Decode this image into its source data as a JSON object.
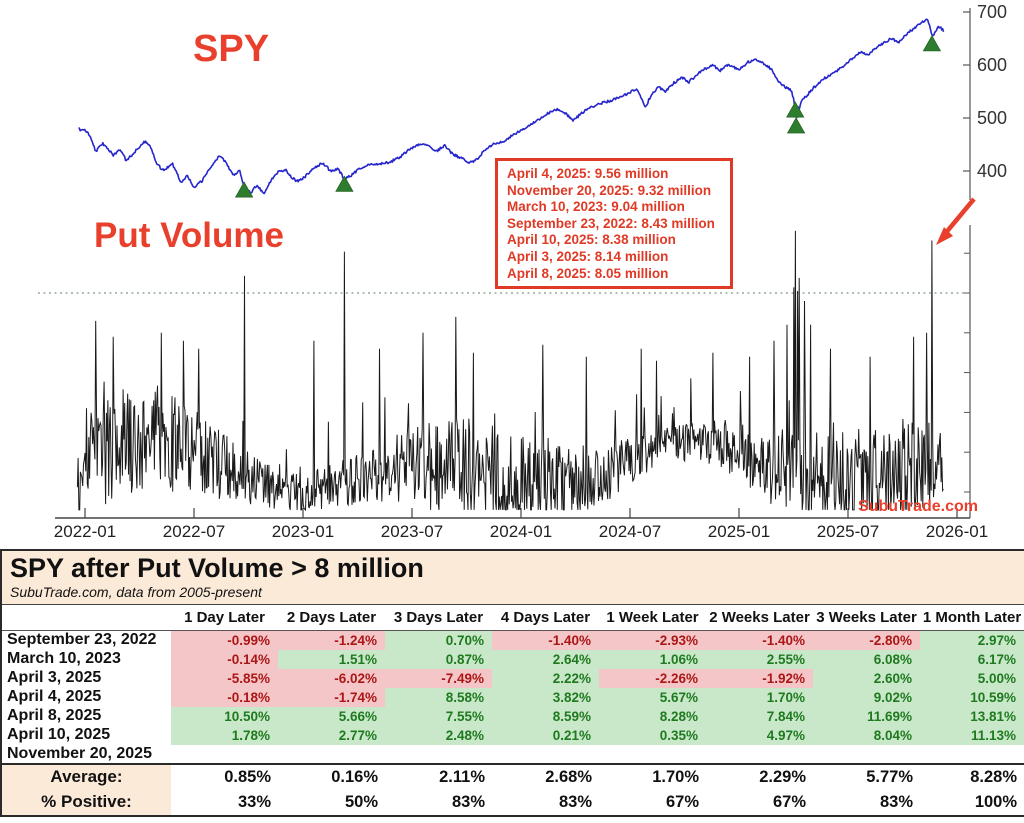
{
  "chart": {
    "spy_label": "SPY",
    "put_volume_label": "Put Volume",
    "credit": "SubuTrade.com",
    "annotation_lines": [
      "April 4, 2025: 9.56 million",
      "November 20, 2025: 9.32 million",
      "March 10, 2023: 9.04 million",
      "September 23, 2022: 8.43 million",
      "April 10, 2025: 8.38 million",
      "April 3, 2025: 8.14 million",
      "April 8, 2025: 8.05 million"
    ],
    "colors": {
      "accent_red": "#e8402c",
      "spy_line": "#2525cd",
      "volume_line": "#1a1a1a",
      "marker_green": "#2e7d2e",
      "threshold_dotted": "#95ab95",
      "axis": "#444444"
    }
  },
  "chart_data": {
    "type": "line",
    "title": "",
    "x_axis": {
      "ticks": [
        {
          "label": "2022-01",
          "t": 2022.0
        },
        {
          "label": "2022-07",
          "t": 2022.5
        },
        {
          "label": "2023-01",
          "t": 2023.0
        },
        {
          "label": "2023-07",
          "t": 2023.5
        },
        {
          "label": "2024-01",
          "t": 2024.0
        },
        {
          "label": "2024-07",
          "t": 2024.5
        },
        {
          "label": "2025-01",
          "t": 2025.0
        },
        {
          "label": "2025-07",
          "t": 2025.5
        },
        {
          "label": "2026-01",
          "t": 2026.0
        }
      ],
      "range": [
        2021.95,
        2026.06
      ]
    },
    "price_axis": {
      "ticks": [
        700,
        600,
        500,
        400
      ],
      "range": [
        350,
        705
      ],
      "side": "right"
    },
    "volume_axis": {
      "unlabeled_tick_values": [
        9,
        8,
        7,
        6,
        5,
        4,
        3
      ],
      "units": "millions"
    },
    "spy_series": {
      "name": "SPY",
      "points": [
        [
          2021.97,
          479
        ],
        [
          2022.0,
          477
        ],
        [
          2022.02,
          468
        ],
        [
          2022.05,
          437
        ],
        [
          2022.08,
          452
        ],
        [
          2022.1,
          446
        ],
        [
          2022.13,
          428
        ],
        [
          2022.16,
          442
        ],
        [
          2022.19,
          419
        ],
        [
          2022.23,
          437
        ],
        [
          2022.27,
          456
        ],
        [
          2022.3,
          448
        ],
        [
          2022.33,
          412
        ],
        [
          2022.36,
          401
        ],
        [
          2022.4,
          415
        ],
        [
          2022.44,
          379
        ],
        [
          2022.47,
          392
        ],
        [
          2022.5,
          367
        ],
        [
          2022.54,
          383
        ],
        [
          2022.57,
          404
        ],
        [
          2022.62,
          430
        ],
        [
          2022.65,
          414
        ],
        [
          2022.68,
          392
        ],
        [
          2022.71,
          402
        ],
        [
          2022.73,
          367
        ],
        [
          2022.76,
          359
        ],
        [
          2022.79,
          374
        ],
        [
          2022.82,
          357
        ],
        [
          2022.85,
          380
        ],
        [
          2022.88,
          397
        ],
        [
          2022.92,
          403
        ],
        [
          2022.94,
          392
        ],
        [
          2022.97,
          380
        ],
        [
          2023.0,
          386
        ],
        [
          2023.05,
          405
        ],
        [
          2023.09,
          415
        ],
        [
          2023.13,
          399
        ],
        [
          2023.16,
          404
        ],
        [
          2023.19,
          385
        ],
        [
          2023.22,
          391
        ],
        [
          2023.26,
          405
        ],
        [
          2023.3,
          412
        ],
        [
          2023.35,
          413
        ],
        [
          2023.4,
          417
        ],
        [
          2023.45,
          428
        ],
        [
          2023.5,
          444
        ],
        [
          2023.55,
          452
        ],
        [
          2023.58,
          448
        ],
        [
          2023.61,
          437
        ],
        [
          2023.65,
          448
        ],
        [
          2023.69,
          430
        ],
        [
          2023.73,
          425
        ],
        [
          2023.76,
          415
        ],
        [
          2023.79,
          419
        ],
        [
          2023.83,
          437
        ],
        [
          2023.88,
          452
        ],
        [
          2023.93,
          458
        ],
        [
          2023.97,
          470
        ],
        [
          2024.0,
          475
        ],
        [
          2024.04,
          488
        ],
        [
          2024.08,
          497
        ],
        [
          2024.12,
          508
        ],
        [
          2024.16,
          517
        ],
        [
          2024.2,
          510
        ],
        [
          2024.24,
          495
        ],
        [
          2024.28,
          510
        ],
        [
          2024.33,
          522
        ],
        [
          2024.37,
          528
        ],
        [
          2024.42,
          534
        ],
        [
          2024.46,
          541
        ],
        [
          2024.5,
          548
        ],
        [
          2024.53,
          556
        ],
        [
          2024.57,
          520
        ],
        [
          2024.6,
          546
        ],
        [
          2024.63,
          558
        ],
        [
          2024.66,
          550
        ],
        [
          2024.7,
          566
        ],
        [
          2024.74,
          576
        ],
        [
          2024.77,
          568
        ],
        [
          2024.81,
          583
        ],
        [
          2024.85,
          594
        ],
        [
          2024.88,
          601
        ],
        [
          2024.91,
          588
        ],
        [
          2024.95,
          600
        ],
        [
          2025.0,
          592
        ],
        [
          2025.04,
          605
        ],
        [
          2025.08,
          611
        ],
        [
          2025.12,
          600
        ],
        [
          2025.15,
          592
        ],
        [
          2025.18,
          568
        ],
        [
          2025.21,
          559
        ],
        [
          2025.24,
          552
        ],
        [
          2025.252,
          535
        ],
        [
          2025.258,
          508
        ],
        [
          2025.265,
          497
        ],
        [
          2025.27,
          522
        ],
        [
          2025.276,
          513
        ],
        [
          2025.285,
          530
        ],
        [
          2025.31,
          542
        ],
        [
          2025.34,
          556
        ],
        [
          2025.38,
          572
        ],
        [
          2025.42,
          582
        ],
        [
          2025.46,
          592
        ],
        [
          2025.5,
          606
        ],
        [
          2025.53,
          616
        ],
        [
          2025.56,
          624
        ],
        [
          2025.59,
          618
        ],
        [
          2025.63,
          633
        ],
        [
          2025.67,
          644
        ],
        [
          2025.7,
          650
        ],
        [
          2025.73,
          642
        ],
        [
          2025.77,
          659
        ],
        [
          2025.81,
          671
        ],
        [
          2025.84,
          681
        ],
        [
          2025.865,
          686
        ],
        [
          2025.878,
          668
        ],
        [
          2025.888,
          654
        ],
        [
          2025.9,
          664
        ],
        [
          2025.92,
          673
        ],
        [
          2025.938,
          665
        ]
      ]
    },
    "event_markers": {
      "shape": "triangle-up",
      "points": [
        {
          "t": 2022.73,
          "price": 379,
          "date": "September 23, 2022"
        },
        {
          "t": 2023.19,
          "price": 390,
          "date": "March 10, 2023"
        },
        {
          "t": 2025.258,
          "price": 530,
          "date": "April 2025 cluster"
        },
        {
          "t": 2025.262,
          "price": 500,
          "date": "April 2025 cluster"
        },
        {
          "t": 2025.885,
          "price": 655,
          "date": "November 20, 2025"
        }
      ]
    },
    "put_volume": {
      "name": "Put Volume (millions of contracts)",
      "threshold_million": 8,
      "spikes": [
        {
          "date": "September 23, 2022",
          "t": 2022.73,
          "value": 8.43
        },
        {
          "date": "March 10, 2023",
          "t": 2023.19,
          "value": 9.04
        },
        {
          "date": "April 3, 2025",
          "t": 2025.253,
          "value": 8.14
        },
        {
          "date": "April 4, 2025",
          "t": 2025.258,
          "value": 9.56
        },
        {
          "date": "April 8, 2025",
          "t": 2025.268,
          "value": 8.05
        },
        {
          "date": "April 10, 2025",
          "t": 2025.275,
          "value": 8.38
        },
        {
          "date": "November 20, 2025",
          "t": 2025.885,
          "value": 9.32
        }
      ],
      "minor_spikes": [
        [
          2022.05,
          7.3
        ],
        [
          2022.13,
          6.9
        ],
        [
          2022.35,
          7.0
        ],
        [
          2022.45,
          6.8
        ],
        [
          2022.52,
          6.6
        ],
        [
          2023.05,
          6.8
        ],
        [
          2023.35,
          6.6
        ],
        [
          2023.55,
          7.0
        ],
        [
          2023.7,
          7.4
        ],
        [
          2023.78,
          6.5
        ],
        [
          2024.1,
          6.7
        ],
        [
          2024.3,
          6.4
        ],
        [
          2024.55,
          6.6
        ],
        [
          2024.62,
          6.3
        ],
        [
          2024.88,
          6.5
        ],
        [
          2025.05,
          6.4
        ],
        [
          2025.16,
          6.8
        ],
        [
          2025.22,
          7.2
        ],
        [
          2025.3,
          7.8
        ],
        [
          2025.33,
          7.2
        ],
        [
          2025.42,
          6.6
        ],
        [
          2025.6,
          6.4
        ],
        [
          2025.8,
          6.9
        ],
        [
          2025.86,
          7.0
        ]
      ],
      "baseline_range_million": [
        2.6,
        5.6
      ]
    }
  },
  "table": {
    "title": "SPY after Put Volume > 8 million",
    "subtitle": "SubuTrade.com, data from 2005-present",
    "columns": [
      "1 Day Later",
      "2 Days Later",
      "3 Days Later",
      "4 Days Later",
      "1 Week Later",
      "2 Weeks Later",
      "3 Weeks Later",
      "1 Month Later"
    ],
    "rows": [
      {
        "date": "September 23, 2022",
        "values": [
          "-0.99%",
          "-1.24%",
          "0.70%",
          "-1.40%",
          "-2.93%",
          "-1.40%",
          "-2.80%",
          "2.97%"
        ]
      },
      {
        "date": "March 10, 2023",
        "values": [
          "-0.14%",
          "1.51%",
          "0.87%",
          "2.64%",
          "1.06%",
          "2.55%",
          "6.08%",
          "6.17%"
        ]
      },
      {
        "date": "April 3, 2025",
        "values": [
          "-5.85%",
          "-6.02%",
          "-7.49%",
          "2.22%",
          "-2.26%",
          "-1.92%",
          "2.60%",
          "5.00%"
        ]
      },
      {
        "date": "April 4, 2025",
        "values": [
          "-0.18%",
          "-1.74%",
          "8.58%",
          "3.82%",
          "5.67%",
          "1.70%",
          "9.02%",
          "10.59%"
        ]
      },
      {
        "date": "April 8, 2025",
        "values": [
          "10.50%",
          "5.66%",
          "7.55%",
          "8.59%",
          "8.28%",
          "7.84%",
          "11.69%",
          "13.81%"
        ]
      },
      {
        "date": "April 10, 2025",
        "values": [
          "1.78%",
          "2.77%",
          "2.48%",
          "0.21%",
          "0.35%",
          "4.97%",
          "8.04%",
          "11.13%"
        ]
      },
      {
        "date": "November 20, 2025",
        "values": [
          "",
          "",
          "",
          "",
          "",
          "",
          "",
          ""
        ]
      }
    ],
    "average": {
      "label": "Average:",
      "values": [
        "0.85%",
        "0.16%",
        "2.11%",
        "2.68%",
        "1.70%",
        "2.29%",
        "5.77%",
        "8.28%"
      ]
    },
    "percent_positive": {
      "label": "% Positive:",
      "values": [
        "33%",
        "50%",
        "83%",
        "83%",
        "67%",
        "67%",
        "83%",
        "100%"
      ]
    }
  }
}
